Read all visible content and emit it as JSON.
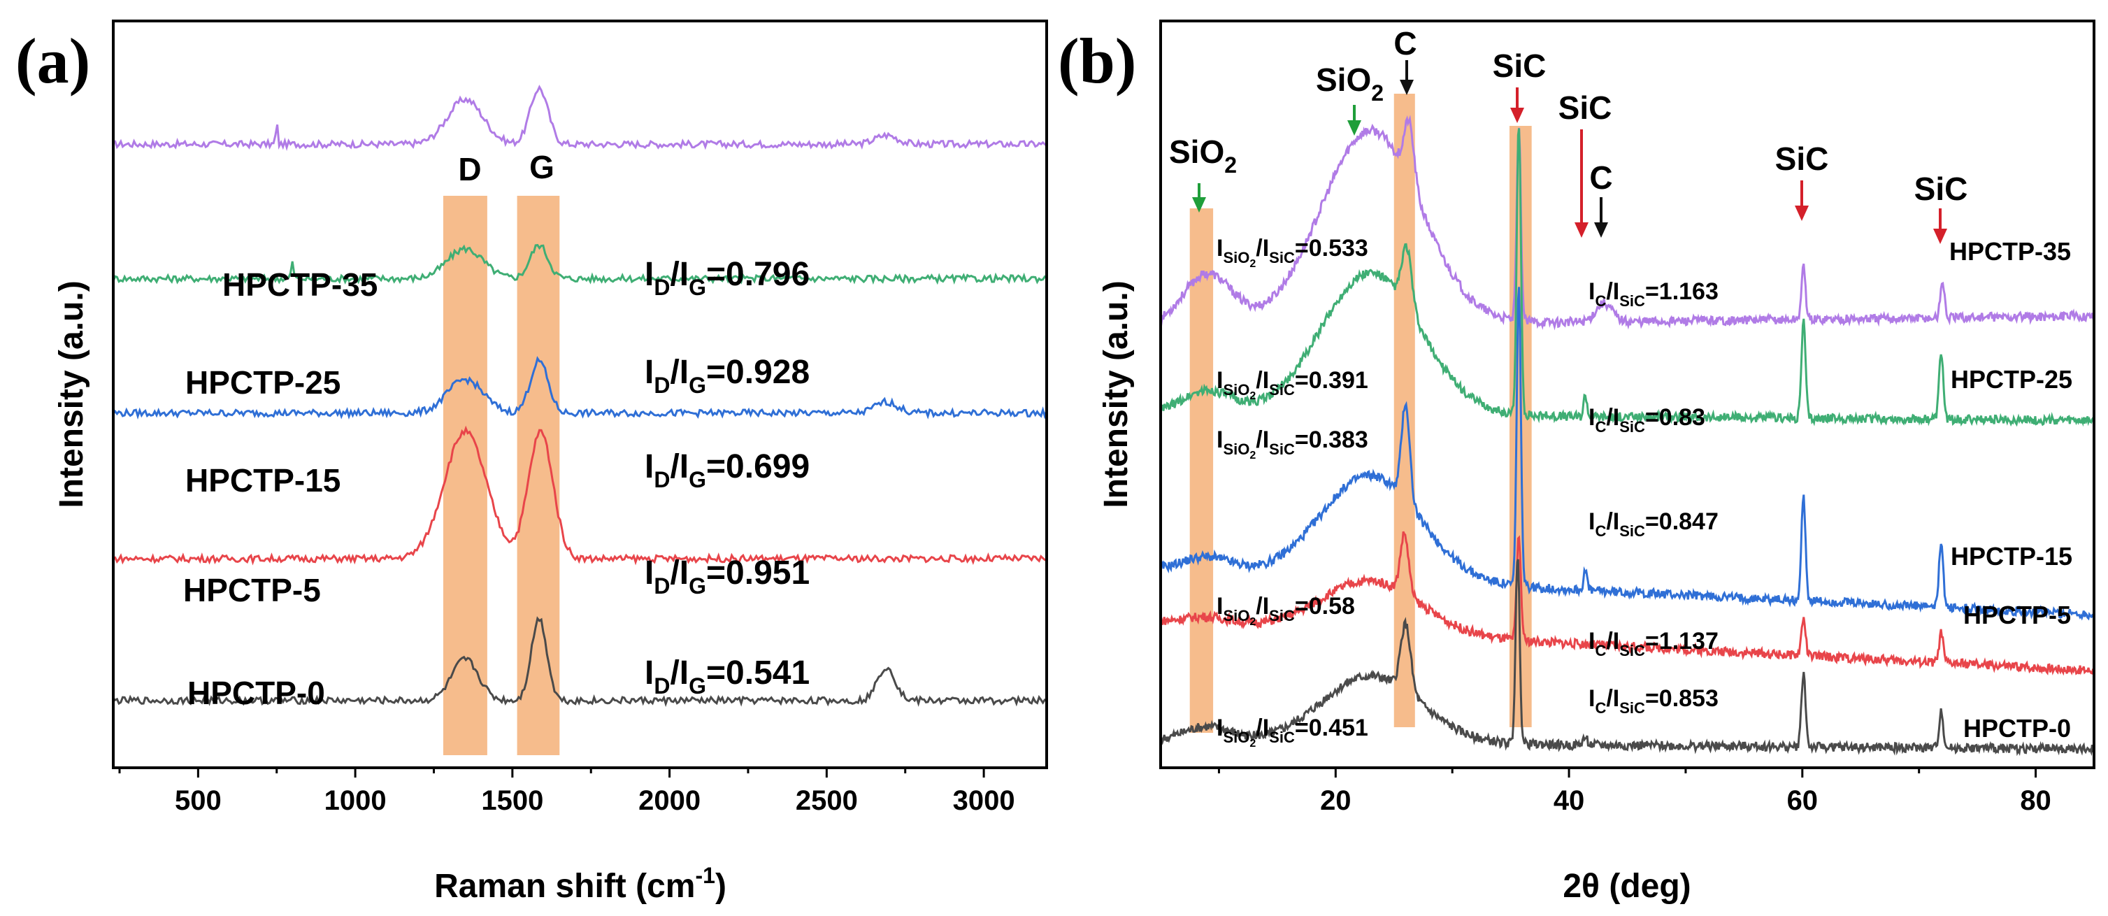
{
  "colors": {
    "HPCTP-0": "#4a4a4a",
    "HPCTP-5": "#e8454a",
    "HPCTP-15": "#2f6fd6",
    "HPCTP-25": "#3fae74",
    "HPCTP-35": "#b07be6",
    "band": "#f4b078",
    "green_arrow": "#1f9e3a",
    "red_arrow": "#d4202a",
    "black_arrow": "#111111"
  },
  "chart_data": [
    {
      "panel": "(a)",
      "type": "line",
      "xlabel_main": "Raman shift (cm",
      "xlabel_sup": "-1",
      "xlabel_end": ")",
      "ylabel": "Intensity (a.u.)",
      "xlim": [
        230,
        3200
      ],
      "xticks": [
        "500",
        "1000",
        "1500",
        "2000",
        "2500",
        "3000"
      ],
      "xtick_values": [
        500,
        1000,
        1500,
        2000,
        2500,
        3000
      ],
      "bands": [
        {
          "label": "D",
          "range": [
            1280,
            1420
          ]
        },
        {
          "label": "G",
          "range": [
            1515,
            1650
          ]
        }
      ],
      "series": [
        {
          "name": "HPCTP-35",
          "baseline": 0.835,
          "ratio_text": "0.796",
          "peaks": [
            {
              "x": 1350,
              "h": 0.06,
              "w": 80
            },
            {
              "x": 1585,
              "h": 0.075,
              "w": 40
            },
            {
              "x": 2690,
              "h": 0.012,
              "w": 50
            },
            {
              "x": 750,
              "h": 0.03,
              "w": 4
            }
          ]
        },
        {
          "name": "HPCTP-25",
          "baseline": 0.655,
          "ratio_text": "0.928",
          "peaks": [
            {
              "x": 1350,
              "h": 0.04,
              "w": 80
            },
            {
              "x": 1585,
              "h": 0.045,
              "w": 40
            },
            {
              "x": 800,
              "h": 0.02,
              "w": 6
            }
          ]
        },
        {
          "name": "HPCTP-15",
          "baseline": 0.475,
          "ratio_text": "0.699",
          "peaks": [
            {
              "x": 1350,
              "h": 0.045,
              "w": 80
            },
            {
              "x": 1585,
              "h": 0.07,
              "w": 40
            },
            {
              "x": 2690,
              "h": 0.015,
              "w": 50
            }
          ]
        },
        {
          "name": "HPCTP-5",
          "baseline": 0.28,
          "ratio_text": "0.951",
          "peaks": [
            {
              "x": 1350,
              "h": 0.17,
              "w": 95
            },
            {
              "x": 1590,
              "h": 0.17,
              "w": 55
            }
          ]
        },
        {
          "name": "HPCTP-0",
          "baseline": 0.09,
          "ratio_text": "0.541",
          "peaks": [
            {
              "x": 1350,
              "h": 0.055,
              "w": 60
            },
            {
              "x": 1585,
              "h": 0.11,
              "w": 35
            },
            {
              "x": 2690,
              "h": 0.045,
              "w": 40
            }
          ]
        }
      ],
      "labels": {
        "band_D": "D",
        "band_G": "G",
        "ratio_prefix_main": "I",
        "ratio_sub_D": "D",
        "ratio_slash": "/I",
        "ratio_sub_G": "G",
        "ratio_eq": "="
      }
    },
    {
      "panel": "(b)",
      "type": "line",
      "xlabel": "2θ (deg)",
      "ylabel": "Intensity (a.u.)",
      "xlim": [
        5,
        85
      ],
      "xticks": [
        "20",
        "40",
        "60",
        "80"
      ],
      "xtick_values": [
        20,
        40,
        60,
        80
      ],
      "bands": [
        {
          "range": [
            7.5,
            9.5
          ]
        },
        {
          "range": [
            25.0,
            26.8
          ]
        },
        {
          "range": [
            34.9,
            36.8
          ]
        }
      ],
      "series": [
        {
          "name": "HPCTP-35",
          "sio2_sic": "0.533",
          "c_sic": "1.163",
          "base_start": 0.59,
          "base_end": 0.605,
          "hump": {
            "x": 23,
            "h": 0.26,
            "w": 6
          },
          "hump2": {
            "x": 9,
            "h": 0.07,
            "w": 3
          },
          "peaks": [
            {
              "x": 26.3,
              "h": 0.08,
              "w": 0.6
            },
            {
              "x": 35.7,
              "h": 0.26,
              "w": 0.25
            },
            {
              "x": 43,
              "h": 0.025,
              "w": 1
            },
            {
              "x": 60.1,
              "h": 0.07,
              "w": 0.25
            },
            {
              "x": 72,
              "h": 0.05,
              "w": 0.25
            }
          ]
        },
        {
          "name": "HPCTP-25",
          "sio2_sic": "0.391",
          "c_sic": "0.83",
          "base_start": 0.475,
          "base_end": 0.465,
          "hump": {
            "x": 23,
            "h": 0.19,
            "w": 6
          },
          "hump2": {
            "x": 9,
            "h": 0.03,
            "w": 3
          },
          "peaks": [
            {
              "x": 26.1,
              "h": 0.08,
              "w": 0.6
            },
            {
              "x": 35.7,
              "h": 0.39,
              "w": 0.25
            },
            {
              "x": 41.4,
              "h": 0.03,
              "w": 0.2
            },
            {
              "x": 60.1,
              "h": 0.13,
              "w": 0.25
            },
            {
              "x": 71.9,
              "h": 0.09,
              "w": 0.25
            }
          ]
        },
        {
          "name": "HPCTP-15",
          "sio2_sic": "0.383",
          "c_sic": "0.847",
          "base_start": 0.265,
          "base_end": 0.205,
          "hump": {
            "x": 23,
            "h": 0.14,
            "w": 6
          },
          "hump2": {
            "x": 9,
            "h": 0.02,
            "w": 3
          },
          "peaks": [
            {
              "x": 26.0,
              "h": 0.13,
              "w": 0.5
            },
            {
              "x": 35.7,
              "h": 0.4,
              "w": 0.25
            },
            {
              "x": 41.4,
              "h": 0.03,
              "w": 0.2
            },
            {
              "x": 60.1,
              "h": 0.14,
              "w": 0.25
            },
            {
              "x": 71.9,
              "h": 0.09,
              "w": 0.25
            }
          ]
        },
        {
          "name": "HPCTP-5",
          "sio2_sic": "0.58",
          "c_sic": "1.137",
          "base_start": 0.195,
          "base_end": 0.13,
          "hump": {
            "x": 23,
            "h": 0.07,
            "w": 6
          },
          "hump2": {
            "x": 9,
            "h": 0.01,
            "w": 3
          },
          "peaks": [
            {
              "x": 25.9,
              "h": 0.08,
              "w": 0.5
            },
            {
              "x": 35.7,
              "h": 0.14,
              "w": 0.25
            },
            {
              "x": 60.1,
              "h": 0.05,
              "w": 0.25
            },
            {
              "x": 71.9,
              "h": 0.04,
              "w": 0.25
            }
          ]
        },
        {
          "name": "HPCTP-0",
          "sio2_sic": "0.451",
          "c_sic": "0.853",
          "base_start": 0.035,
          "base_end": 0.025,
          "hump": {
            "x": 23,
            "h": 0.09,
            "w": 6
          },
          "hump2": {
            "x": 9,
            "h": 0.02,
            "w": 3
          },
          "peaks": [
            {
              "x": 26.0,
              "h": 0.09,
              "w": 0.6
            },
            {
              "x": 35.6,
              "h": 0.25,
              "w": 0.25
            },
            {
              "x": 41.4,
              "h": 0.01,
              "w": 0.3
            },
            {
              "x": 60.1,
              "h": 0.1,
              "w": 0.25
            },
            {
              "x": 71.9,
              "h": 0.05,
              "w": 0.25
            }
          ]
        }
      ],
      "annotations": {
        "sio2_left": "SiO",
        "sio2_left_sub": "2",
        "sio2_mid": "SiO",
        "sio2_mid_sub": "2",
        "c_top": "C",
        "sic_1": "SiC",
        "sic_2": "SiC",
        "c_mid": "C",
        "sic_3": "SiC",
        "sic_4": "SiC"
      },
      "ratio_labels": {
        "I": "I",
        "sub_sio2": "SiO",
        "sub_sio2_2": "2",
        "slash_I": "/I",
        "sub_sic": "SiC",
        "eq": "=",
        "sub_c": "C"
      }
    }
  ]
}
